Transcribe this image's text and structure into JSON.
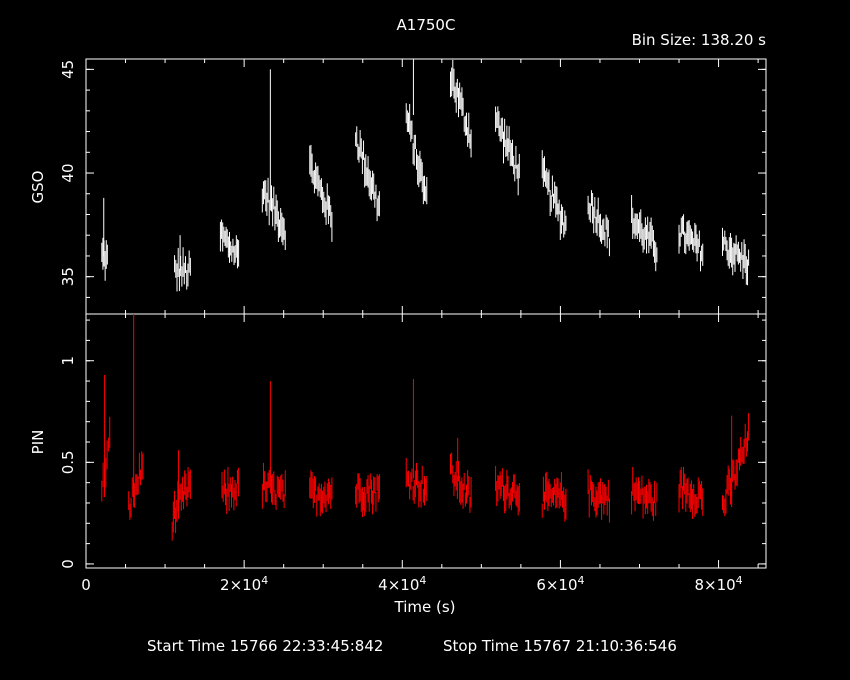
{
  "title": "A1750C",
  "bin_size": "Bin Size: 138.20 s",
  "start_time": "Start Time 15766 22:33:45:842",
  "stop_time": "Stop Time 15767 21:10:36:546",
  "colors": {
    "gso": "#ffffff",
    "pin": "#ff0000",
    "axes": "#ffffff",
    "background": "#000000"
  },
  "chart_data": {
    "type": "line",
    "title": "A1750C",
    "xlabel": "Time (s)",
    "xlim": [
      0,
      86000
    ],
    "x_ticks": [
      {
        "value": 0,
        "label": "0"
      },
      {
        "value": 20000,
        "label": "2×10",
        "sup": "4"
      },
      {
        "value": 40000,
        "label": "4×10",
        "sup": "4"
      },
      {
        "value": 60000,
        "label": "6×10",
        "sup": "4"
      },
      {
        "value": 80000,
        "label": "8×10",
        "sup": "4"
      }
    ],
    "panels": [
      {
        "name": "GSO",
        "ylabel": "GSO",
        "ylim": [
          33.2,
          45.5
        ],
        "yticks": [
          35,
          40,
          45
        ],
        "segments": [
          {
            "t": [
              2000,
              2700
            ],
            "y": [
              36.0,
              35.8
            ],
            "hi": 38.8
          },
          {
            "t": [
              11200,
              13200
            ],
            "y": [
              35.3,
              35.2
            ],
            "hi": 37.0
          },
          {
            "t": [
              17000,
              19300
            ],
            "y": [
              37.0,
              36.0
            ]
          },
          {
            "t": [
              22300,
              25200
            ],
            "y": [
              39.2,
              37.3
            ],
            "hi": 45.0
          },
          {
            "t": [
              28300,
              31100
            ],
            "y": [
              40.4,
              37.8
            ]
          },
          {
            "t": [
              34100,
              37100
            ],
            "y": [
              41.8,
              38.3
            ]
          },
          {
            "t": [
              40500,
              43100
            ],
            "y": [
              42.8,
              38.7
            ],
            "hi": 45.5
          },
          {
            "t": [
              46100,
              48700
            ],
            "y": [
              44.8,
              41.7
            ]
          },
          {
            "t": [
              51800,
              54800
            ],
            "y": [
              42.6,
              40.0
            ]
          },
          {
            "t": [
              57700,
              60700
            ],
            "y": [
              39.9,
              37.4
            ]
          },
          {
            "t": [
              63500,
              66200
            ],
            "y": [
              38.7,
              36.9
            ]
          },
          {
            "t": [
              69000,
              72200
            ],
            "y": [
              37.8,
              36.3
            ]
          },
          {
            "t": [
              75000,
              78000
            ],
            "y": [
              37.2,
              36.2
            ]
          },
          {
            "t": [
              80500,
              83800
            ],
            "y": [
              36.6,
              35.6
            ]
          }
        ]
      },
      {
        "name": "PIN",
        "ylabel": "PIN",
        "ylim": [
          -0.02,
          1.23
        ],
        "yticks": [
          0,
          0.5,
          1
        ],
        "segments": [
          {
            "t": [
              2000,
              3000
            ],
            "y": [
              0.35,
              0.6
            ],
            "hi": 0.93
          },
          {
            "t": [
              5400,
              7200
            ],
            "y": [
              0.28,
              0.48
            ],
            "hi": 1.23
          },
          {
            "t": [
              10900,
              13200
            ],
            "y": [
              0.22,
              0.4
            ],
            "hi": 0.56
          },
          {
            "t": [
              17200,
              19300
            ],
            "y": [
              0.34,
              0.38
            ]
          },
          {
            "t": [
              22300,
              25200
            ],
            "y": [
              0.38,
              0.34
            ],
            "hi": 0.9
          },
          {
            "t": [
              28300,
              31100
            ],
            "y": [
              0.34,
              0.36
            ]
          },
          {
            "t": [
              34100,
              37100
            ],
            "y": [
              0.36,
              0.36
            ]
          },
          {
            "t": [
              40500,
              43100
            ],
            "y": [
              0.42,
              0.38
            ],
            "hi": 0.91
          },
          {
            "t": [
              46100,
              48700
            ],
            "y": [
              0.45,
              0.32
            ],
            "hi": 0.62
          },
          {
            "t": [
              51800,
              54800
            ],
            "y": [
              0.38,
              0.36
            ]
          },
          {
            "t": [
              57700,
              60700
            ],
            "y": [
              0.32,
              0.33
            ]
          },
          {
            "t": [
              63500,
              66200
            ],
            "y": [
              0.35,
              0.32
            ]
          },
          {
            "t": [
              69000,
              72200
            ],
            "y": [
              0.36,
              0.3
            ]
          },
          {
            "t": [
              75000,
              78000
            ],
            "y": [
              0.38,
              0.33
            ]
          },
          {
            "t": [
              80500,
              83800
            ],
            "y": [
              0.28,
              0.62
            ],
            "hi": 0.73
          }
        ]
      }
    ]
  }
}
